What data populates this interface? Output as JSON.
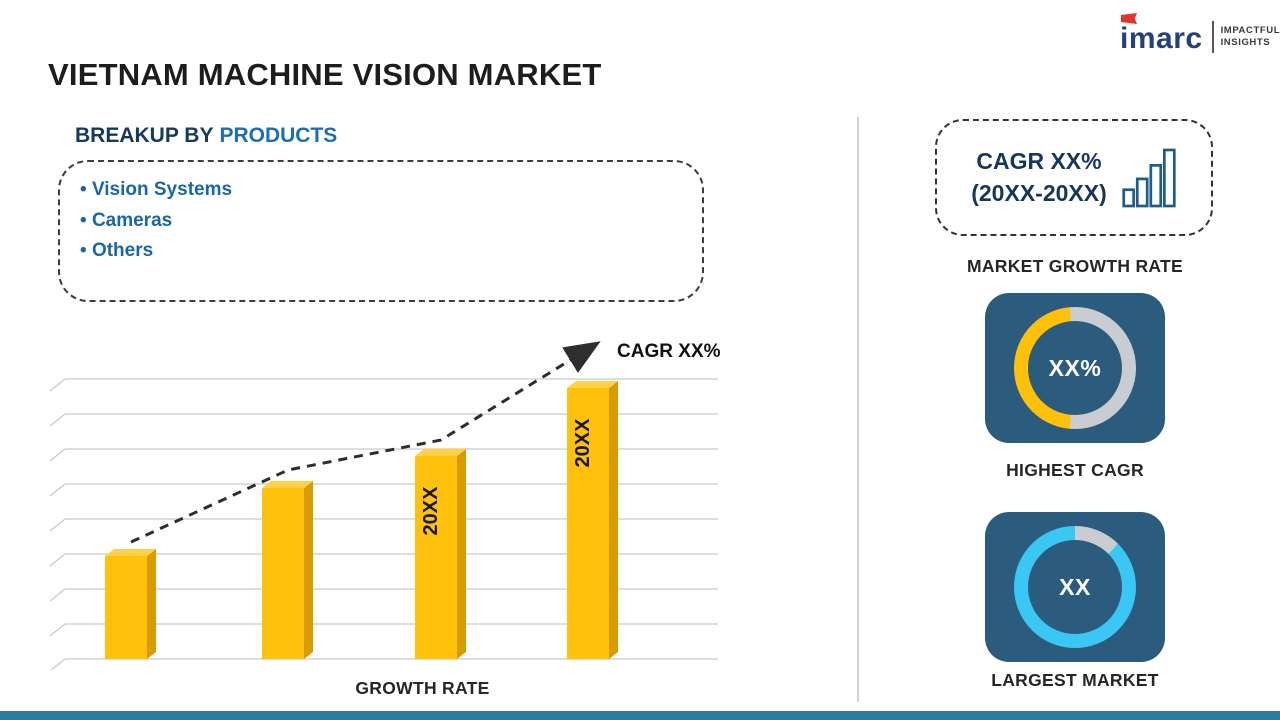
{
  "title": "VIETNAM MACHINE VISION MARKET",
  "logo": {
    "brand": "imarc",
    "tagline_line1": "IMPACTFUL",
    "tagline_line2": "INSIGHTS"
  },
  "breakup": {
    "prefix": "BREAKUP BY",
    "highlight": "PRODUCTS",
    "items": [
      "Vision Systems",
      "Cameras",
      "Others"
    ]
  },
  "chart_data": {
    "type": "bar",
    "categories": [
      "",
      "",
      "20XX",
      "20XX"
    ],
    "values_relative": [
      38,
      63,
      75,
      100
    ],
    "bar_color": "#FFC10A",
    "bar_side_color": "#D89B00",
    "bar_top_color": "#FFD24A",
    "title": "",
    "xlabel": "GROWTH RATE",
    "ylabel": "",
    "ylim": [
      0,
      100
    ],
    "grid": true,
    "legend": false,
    "trend_annotation": "CAGR XX%",
    "trend_style": "dashed-arrow-rising"
  },
  "sidebar": {
    "growth_box": {
      "line1": "CAGR XX%",
      "line2": "(20XX-20XX)"
    },
    "market_growth_rate_label": "MARKET GROWTH RATE",
    "highest_cagr": {
      "value": "XX%",
      "label": "HIGHEST CAGR",
      "donut": {
        "color": "#FFC008",
        "track": "#C9CDD2",
        "start_deg": 185,
        "sweep_deg": 170
      }
    },
    "largest_market": {
      "value": "XX",
      "label": "LARGEST MARKET",
      "donut": {
        "color": "#3BC7F4",
        "track": "#C9CDD2",
        "start_deg": 45,
        "sweep_deg": 315
      }
    }
  },
  "colors": {
    "accent_navy": "#16365E",
    "accent_blue": "#1C6FB5",
    "card_bg": "#2B5C7E",
    "bottom_bar": "#2B7C99",
    "brand_navy": "#24407E",
    "brand_red": "#E63329"
  }
}
